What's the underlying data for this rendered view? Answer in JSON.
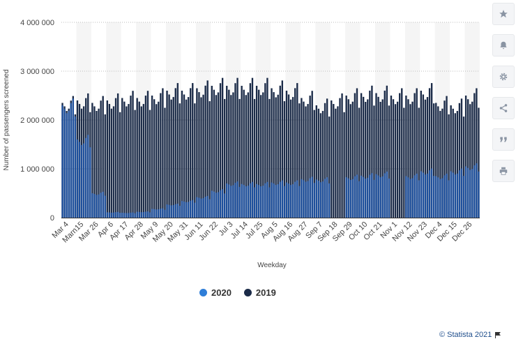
{
  "chart_data": {
    "type": "bar",
    "title": "",
    "xlabel": "Weekday",
    "ylabel": "Number of passengers screened",
    "ylim": [
      0,
      4000000
    ],
    "y_ticks": [
      "0",
      "1 000 000",
      "2 000 000",
      "3 000 000",
      "4 000 000"
    ],
    "y_tick_values": [
      0,
      1000000,
      2000000,
      3000000,
      4000000
    ],
    "x_tick_labels": [
      "Mar 4",
      "Marn15",
      "Mar 26",
      "Apr 6",
      "Apr 17",
      "Apr 28",
      "May 9",
      "May 20",
      "May 31",
      "Jun 11",
      "Jun 22",
      "Jul 3",
      "Jul 14",
      "Jul 25",
      "Aug 5",
      "Aug 16",
      "Aug 27",
      "Sep 7",
      "Sep 18",
      "Sep 29",
      "Oct 10",
      "Oct 21",
      "Nov 1",
      "Nov 12",
      "Nov 23",
      "Dec 4",
      "Dec 15",
      "Dec 26"
    ],
    "grid": true,
    "legend_position": "bottom-center",
    "series": [
      {
        "name": "2020",
        "color": "#2f7ed8",
        "approx_weekly_values": [
          2300000,
          1600000,
          500000,
          110000,
          100000,
          120000,
          180000,
          270000,
          340000,
          420000,
          550000,
          700000,
          690000,
          690000,
          720000,
          720000,
          790000,
          780000,
          0,
          830000,
          860000,
          890000,
          0,
          850000,
          950000,
          850000,
          950000,
          1050000
        ]
      },
      {
        "name": "2019",
        "color": "#1b2b48",
        "approx_weekly_values": [
          2350000,
          2400000,
          2350000,
          2400000,
          2450000,
          2450000,
          2500000,
          2600000,
          2600000,
          2650000,
          2700000,
          2700000,
          2700000,
          2700000,
          2650000,
          2600000,
          2450000,
          2300000,
          2400000,
          2500000,
          2550000,
          2550000,
          2500000,
          2500000,
          2600000,
          2350000,
          2300000,
          2500000
        ]
      }
    ]
  },
  "legend": {
    "items": [
      {
        "label": "2020",
        "color": "#2f7ed8"
      },
      {
        "label": "2019",
        "color": "#1b2b48"
      }
    ]
  },
  "toolbar": {
    "buttons": [
      {
        "name": "star-icon",
        "glyph": "★"
      },
      {
        "name": "bell-icon",
        "glyph": "🔔"
      },
      {
        "name": "gear-icon",
        "glyph": "⚙"
      },
      {
        "name": "share-icon",
        "glyph": "⋖"
      },
      {
        "name": "quote-icon",
        "glyph": "❞"
      },
      {
        "name": "print-icon",
        "glyph": "⎙"
      }
    ]
  },
  "credit": {
    "text": "© Statista 2021"
  }
}
